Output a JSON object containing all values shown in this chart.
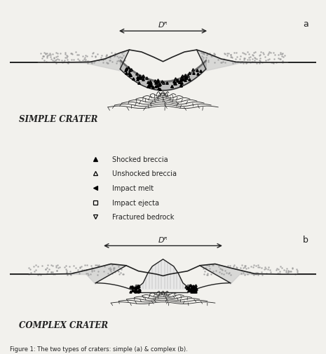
{
  "figure_caption": "Figure 1: The two types of craters: simple (a) & complex (b).",
  "label_a": "a",
  "label_b": "b",
  "simple_label": "SIMPLE CRATER",
  "complex_label": "COMPLEX CRATER",
  "diameter_label": "Dᴿ",
  "legend_items": [
    {
      "marker": "^",
      "mfc": "black",
      "mec": "black",
      "label": "Shocked breccia"
    },
    {
      "marker": "^",
      "mfc": "none",
      "mec": "black",
      "label": "Unshocked breccia"
    },
    {
      "marker": "<",
      "mfc": "black",
      "mec": "black",
      "label": "Impact melt"
    },
    {
      "marker": "s",
      "mfc": "none",
      "mec": "black",
      "label": "Impact ejecta"
    },
    {
      "marker": "v",
      "mfc": "none",
      "mec": "black",
      "label": "Fractured bedrock"
    }
  ],
  "bg_color": "#f2f1ed",
  "line_color": "#222222",
  "text_color": "#222222",
  "ejecta_color": "#c8c8c8",
  "breccia_color": "#aaaaaa",
  "dark_color": "#333333",
  "peak_color": "#e8e8e8"
}
